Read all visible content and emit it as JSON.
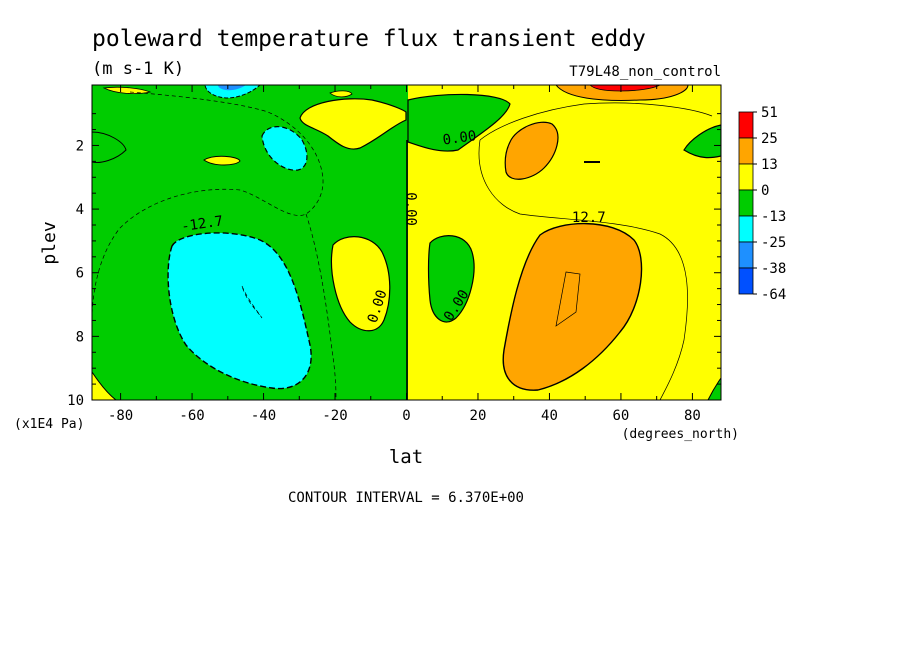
{
  "chart_data": {
    "type": "heatmap",
    "title": "poleward temperature flux transient eddy",
    "units": "(m s-1 K)",
    "dataset": "T79L48_non_control",
    "xlabel": "lat",
    "xunits": "(degrees_north)",
    "ylabel": "plev",
    "yunits": "(x1E4 Pa)",
    "footer": "CONTOUR INTERVAL = 6.370E+00",
    "xlim": [
      -88,
      88
    ],
    "ylim": [
      10,
      0.1
    ],
    "xticks": [
      -80,
      -60,
      -40,
      -20,
      0,
      20,
      40,
      60,
      80
    ],
    "xtick_labels": [
      "-80",
      "-60",
      "-40",
      "-20",
      "0",
      "20",
      "40",
      "60",
      "80"
    ],
    "yticks": [
      2,
      4,
      6,
      8,
      10
    ],
    "ytick_labels": [
      "2",
      "4",
      "6",
      "8",
      "10"
    ],
    "colorbar": {
      "labels": [
        "51",
        "25",
        "13",
        "0",
        "-13",
        "-25",
        "-38",
        "-64"
      ],
      "colors": [
        "#ff0000",
        "#ffa500",
        "#ffff00",
        "#00cc00",
        "#00ffff",
        "#1e90ff",
        "#0050ff"
      ]
    },
    "contour_labels": [
      {
        "text": "-12.7",
        "lat": -57,
        "plev": 4.6,
        "angle": -8
      },
      {
        "text": "12.7",
        "lat": 51,
        "plev": 4.4,
        "angle": 0
      },
      {
        "text": "0.00",
        "lat": 15,
        "plev": 1.9,
        "angle": -8
      },
      {
        "text": "0.00",
        "lat": 0,
        "plev": 4.0,
        "angle": 90
      },
      {
        "text": "0.00",
        "lat": -7,
        "plev": 7.1,
        "angle": -72
      },
      {
        "text": "0.00",
        "lat": 15,
        "plev": 7.1,
        "angle": -58
      }
    ],
    "regions": [
      {
        "value_band": "-13 to 0",
        "color": "#00cc00",
        "area": "southern hemisphere (lat -88 to 0), most of the column"
      },
      {
        "value_band": "0 to 13",
        "color": "#ffff00",
        "area": "northern hemisphere (lat 0 to 88), most of the column"
      },
      {
        "value_band": "-25 to -13",
        "color": "#00ffff",
        "area": "lat -70 to -30, plev 4.6 to 9.6; minimum near lat -45, plev 7"
      },
      {
        "value_band": "-25 to -13",
        "color": "#00ffff",
        "area": "lat -40 to -28, plev 1.4 to 2.7"
      },
      {
        "value_band": "13 to 25",
        "color": "#ffa500",
        "area": "lat 27 to 67, plev 4.5 to 9.8; maximum near lat 45, plev 7"
      },
      {
        "value_band": "13 to 25",
        "color": "#ffa500",
        "area": "lat 28 to 44, plev 1.2 to 3.2"
      },
      {
        "value_band": "25 to 51",
        "color": "#ff0000",
        "area": "lat 45 to 80, near plev 0.1"
      },
      {
        "value_band": "0 to 13",
        "color": "#ffff00",
        "area": "lat -22 to -7, plev 4.9 to 7.5"
      },
      {
        "value_band": "-13 to 0",
        "color": "#00cc00",
        "area": "lat 6 to 18, plev 4.8 to 7.4"
      }
    ]
  }
}
